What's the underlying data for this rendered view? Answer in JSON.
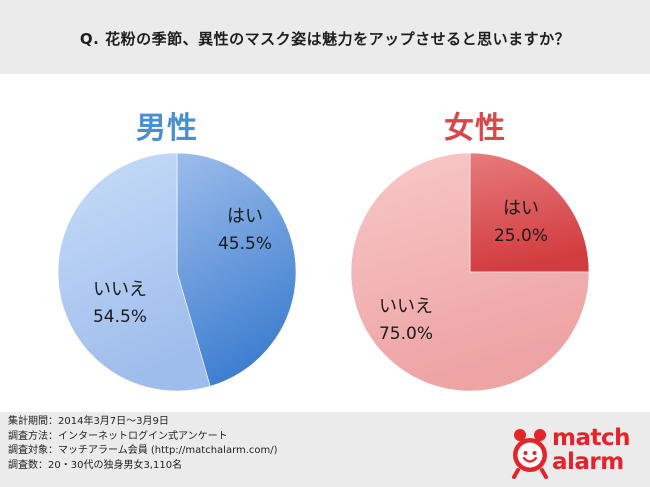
{
  "header": {
    "question": "Q. 花粉の季節、異性のマスク姿は魅力をアップさせると思いますか？"
  },
  "chart_data": [
    {
      "type": "pie",
      "title": "男性",
      "slices": [
        {
          "label": "はい",
          "value": 45.5,
          "value_label": "45.5%",
          "color": "#6a9fe0"
        },
        {
          "label": "いいえ",
          "value": 54.5,
          "value_label": "54.5%",
          "color": "#b4cdf3"
        }
      ]
    },
    {
      "type": "pie",
      "title": "女性",
      "slices": [
        {
          "label": "はい",
          "value": 25.0,
          "value_label": "25.0%",
          "color": "#dc5d5f"
        },
        {
          "label": "いいえ",
          "value": 75.0,
          "value_label": "75.0%",
          "color": "#f2b5b5"
        }
      ]
    }
  ],
  "footer": {
    "lines": [
      "集計期間：2014年3月7日〜3月9日",
      "調査方法：インターネットログイン式アンケート",
      "調査対象：マッチアラーム会員 (http://matchalarm.com/)",
      "調査数：20・30代の独身男女3,110名"
    ],
    "logo_line1": "match",
    "logo_line2": "alarm"
  }
}
